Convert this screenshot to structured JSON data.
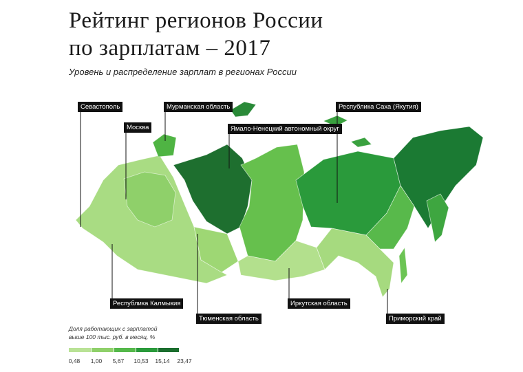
{
  "header": {
    "title_lines": [
      "Рейтинг регионов России",
      "по зарплатам – 2017"
    ],
    "subtitle": "Уровень и распределение зарплат в регионах России"
  },
  "map": {
    "labels": [
      "Севастополь",
      "Москва",
      "Мурманская область",
      "Ямало-Ненецкий автономный округ",
      "Республика Саха (Якутия)",
      "Республика Калмыкия",
      "Тюменская область",
      "Иркутская область",
      "Приморский край"
    ]
  },
  "legend": {
    "title_lines": [
      "Доля работающих с зарплатой",
      "выше 100 тыс. руб. в месяц, %"
    ],
    "ticks": [
      "0,48",
      "1,00",
      "5,67",
      "10,53",
      "15,14",
      "23,47"
    ]
  }
}
